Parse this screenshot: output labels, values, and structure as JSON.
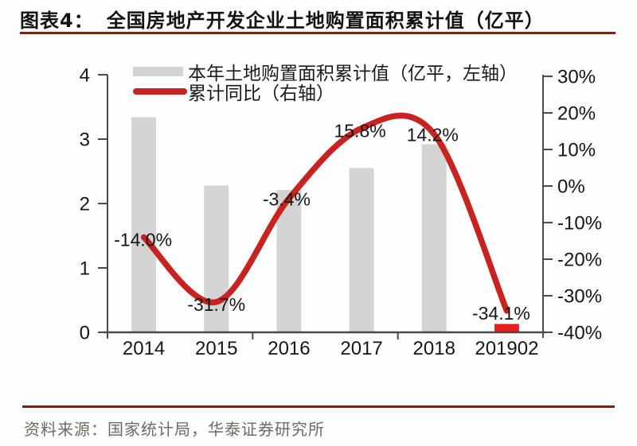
{
  "header": {
    "figure_label": "图表4：",
    "title": "全国房地产开发企业土地购置面积累计值（亿平）"
  },
  "legend": {
    "items": [
      {
        "label": "本年土地购置面积累计值（亿平，左轴）",
        "swatch": "bar-swatch",
        "color": "#d4d4d4"
      },
      {
        "label": "累计同比（右轴）",
        "swatch": "line-swatch",
        "color": "#c8231f"
      }
    ]
  },
  "footer": {
    "source": "资料来源：国家统计局，华泰证券研究所"
  },
  "colors": {
    "bar_gray": "#d4d4d4",
    "bar_highlight_red": "#ea1d1f",
    "line_red": "#c8231f",
    "rule_maroon": "#7c211c",
    "axis_gray": "#4a4a4a",
    "text_dark": "#161616"
  },
  "chart_data": {
    "type": "bar",
    "categories": [
      "2014",
      "2015",
      "2016",
      "2017",
      "2018",
      "201902"
    ],
    "series": [
      {
        "name": "本年土地购置面积累计值（亿平，左轴）",
        "type": "bar",
        "axis": "left",
        "values": [
          3.34,
          2.28,
          2.21,
          2.55,
          2.92,
          0.13
        ],
        "colors": [
          "#d4d4d4",
          "#d4d4d4",
          "#d4d4d4",
          "#d4d4d4",
          "#d4d4d4",
          "#ea1d1f"
        ]
      },
      {
        "name": "累计同比（右轴）",
        "type": "line",
        "axis": "right",
        "values": [
          -14.0,
          -31.7,
          -3.4,
          15.8,
          14.2,
          -34.1
        ],
        "labels": [
          "-14.0%",
          "-31.7%",
          "-3.4%",
          "15.8%",
          "14.2%",
          "-34.1%"
        ],
        "color": "#c8231f",
        "smooth": true
      }
    ],
    "left_axis": {
      "min": 0,
      "max": 4,
      "tick_values": [
        4,
        3,
        2,
        1,
        0
      ],
      "ticks": [
        "4",
        "3",
        "2",
        "1",
        "0"
      ]
    },
    "right_axis": {
      "min": -40,
      "max": 30,
      "tick_values": [
        30,
        20,
        10,
        0,
        -10,
        -20,
        -30,
        -40
      ],
      "ticks": [
        "30%",
        "20%",
        "10%",
        "0%",
        "-10%",
        "-20%",
        "-30%",
        "-40%"
      ]
    },
    "grid": false,
    "legend_position": "top-left"
  }
}
